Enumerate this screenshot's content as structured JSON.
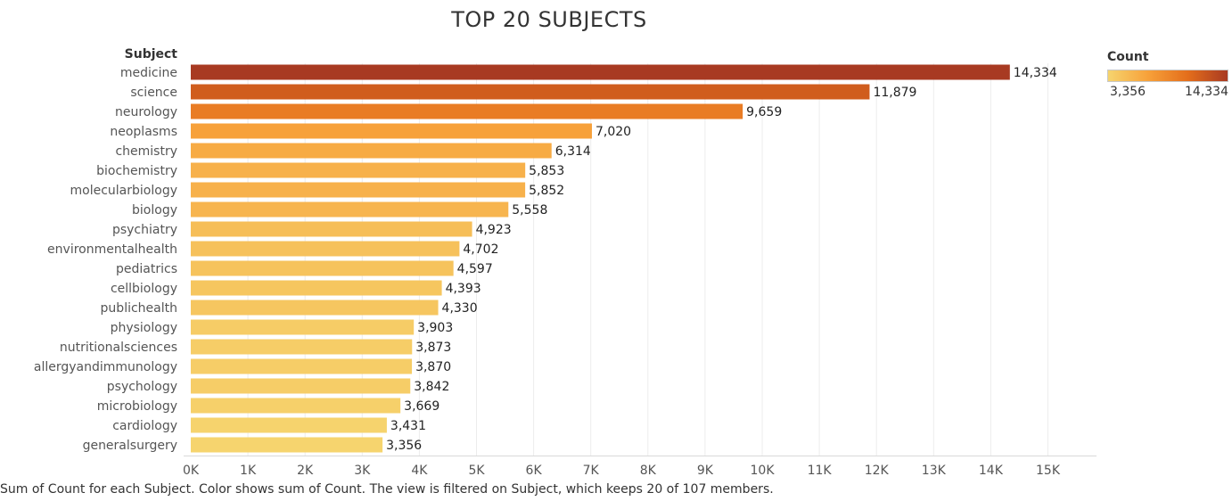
{
  "chart_data": {
    "type": "bar",
    "orientation": "horizontal",
    "title": "TOP 20 SUBJECTS",
    "ylabel": "Subject",
    "xlabel": "",
    "categories": [
      "medicine",
      "science",
      "neurology",
      "neoplasms",
      "chemistry",
      "biochemistry",
      "molecularbiology",
      "biology",
      "psychiatry",
      "environmentalhealth",
      "pediatrics",
      "cellbiology",
      "publichealth",
      "physiology",
      "nutritionalsciences",
      "allergyandimmunology",
      "psychology",
      "microbiology",
      "cardiology",
      "generalsurgery"
    ],
    "values": [
      14334,
      11879,
      9659,
      7020,
      6314,
      5853,
      5852,
      5558,
      4923,
      4702,
      4597,
      4393,
      4330,
      3903,
      3873,
      3870,
      3842,
      3669,
      3431,
      3356
    ],
    "value_labels": [
      "14,334",
      "11,879",
      "9,659",
      "7,020",
      "6,314",
      "5,853",
      "5,852",
      "5,558",
      "4,923",
      "4,702",
      "4,597",
      "4,393",
      "4,330",
      "3,903",
      "3,873",
      "3,870",
      "3,842",
      "3,669",
      "3,431",
      "3,356"
    ],
    "xlim": [
      0,
      16000
    ],
    "xticks": [
      0,
      1000,
      2000,
      3000,
      4000,
      5000,
      6000,
      7000,
      8000,
      9000,
      10000,
      11000,
      12000,
      13000,
      14000,
      15000
    ],
    "xtick_labels": [
      "0K",
      "1K",
      "2K",
      "3K",
      "4K",
      "5K",
      "6K",
      "7K",
      "8K",
      "9K",
      "10K",
      "11K",
      "12K",
      "13K",
      "14K",
      "15K"
    ],
    "grid": "vertical",
    "legend": {
      "title": "Count",
      "position": "top-right",
      "min_label": "3,356",
      "max_label": "14,334",
      "min_value": 3356,
      "max_value": 14334,
      "colors": [
        "#f6d46e",
        "#f7a13a",
        "#e46e1b",
        "#a83a22"
      ]
    }
  },
  "caption": "Sum of Count for each Subject.  Color shows sum of Count. The view is filtered on Subject, which keeps 20 of 107 members."
}
